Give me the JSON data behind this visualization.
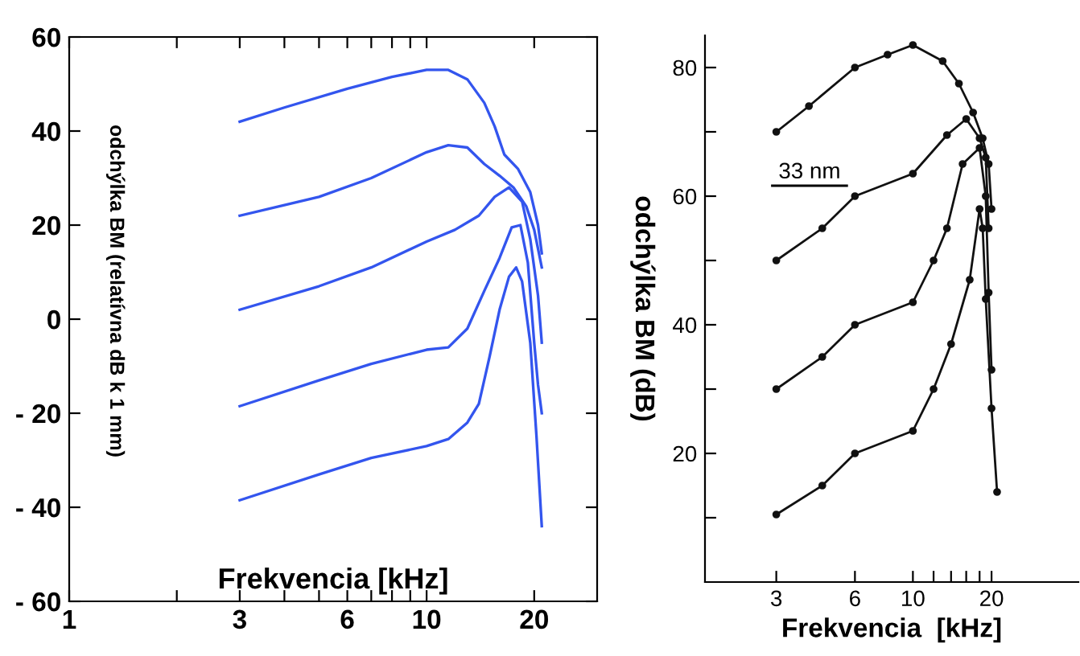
{
  "chart_data": [
    {
      "type": "line",
      "xlabel": "Frekvencia [kHz]",
      "ylabel": "odchýlka BM (relatívna dB k 1 mm)",
      "log": "x",
      "xlim": [
        1,
        30
      ],
      "xticks": [
        1,
        {
          "value": 2,
          "label": null
        },
        3,
        {
          "value": 4,
          "label": null
        },
        {
          "value": 5,
          "label": null
        },
        6,
        {
          "value": 7,
          "label": null
        },
        {
          "value": 8,
          "label": null
        },
        {
          "value": 9,
          "label": null
        },
        10,
        20
      ],
      "ylim": [
        -60,
        60
      ],
      "yticks": [
        {
          "value": -60,
          "label": "- 60"
        },
        {
          "value": -40,
          "label": "- 40"
        },
        {
          "value": -20,
          "label": "- 20"
        },
        0,
        20,
        40,
        60
      ],
      "grid": false,
      "marker": "none",
      "line_style": "solid",
      "series": [
        {
          "color": "#3355ee",
          "x": [
            3,
            4,
            6,
            8,
            10,
            11.5,
            13,
            14.5,
            15.5,
            16.5,
            18,
            19.5,
            20.5,
            21
          ],
          "values": [
            42,
            45,
            49,
            51.5,
            53,
            53,
            51,
            46,
            41,
            35,
            32,
            27,
            20,
            14
          ]
        },
        {
          "color": "#3355ee",
          "x": [
            3,
            5,
            7,
            10,
            11.5,
            13,
            14.5,
            16,
            17.5,
            19,
            20,
            21
          ],
          "values": [
            22,
            26,
            30,
            35.5,
            37,
            36.5,
            33,
            30.5,
            28,
            24,
            19,
            11
          ]
        },
        {
          "color": "#3355ee",
          "x": [
            3,
            5,
            7,
            10,
            12,
            14,
            15.5,
            17,
            18.5,
            19.5,
            20.5,
            21
          ],
          "values": [
            2,
            7,
            11,
            16.5,
            19,
            22,
            26,
            28,
            25,
            17,
            5,
            -5
          ]
        },
        {
          "color": "#3355ee",
          "x": [
            3,
            5,
            7,
            10,
            11.5,
            13,
            14.5,
            16,
            17.3,
            18.3,
            19.2,
            20,
            20.5,
            21
          ],
          "values": [
            -18.5,
            -13,
            -9.5,
            -6.5,
            -6,
            -2,
            6,
            13,
            19.5,
            20,
            12,
            -5,
            -14,
            -20
          ]
        },
        {
          "color": "#3355ee",
          "x": [
            3,
            5,
            7,
            10,
            11.5,
            13,
            14,
            15,
            16,
            17,
            17.8,
            18.5,
            19.5,
            20.3,
            21
          ],
          "values": [
            -38.5,
            -33,
            -29.5,
            -27,
            -25.5,
            -22,
            -18,
            -8,
            2,
            9,
            11,
            8,
            -5,
            -25,
            -44
          ]
        }
      ]
    },
    {
      "type": "line",
      "xlabel": "Frekvencia  [kHz]",
      "ylabel": "odchýlka BM (dB)",
      "log": "x",
      "xlim": [
        1.6,
        43
      ],
      "xticks": [
        3,
        6,
        10,
        {
          "value": 12,
          "label": null
        },
        {
          "value": 14,
          "label": null
        },
        {
          "value": 16,
          "label": null
        },
        {
          "value": 18,
          "label": null
        },
        20
      ],
      "ylim": [
        0,
        85
      ],
      "yticks": [
        {
          "value": 10,
          "label": null
        },
        20,
        {
          "value": 30,
          "label": null
        },
        40,
        {
          "value": 50,
          "label": null
        },
        60,
        {
          "value": 70,
          "label": null
        },
        80
      ],
      "grid": false,
      "marker": "circle",
      "line_style": "solid",
      "annotations": [
        "33 nm"
      ],
      "series": [
        {
          "color": "#111111",
          "x": [
            3,
            4,
            6,
            8,
            10,
            13,
            15,
            17,
            18.5,
            19.5,
            20
          ],
          "values": [
            70,
            74,
            80,
            82,
            83.5,
            81,
            77.5,
            73,
            69,
            65,
            58
          ]
        },
        {
          "color": "#111111",
          "x": [
            3,
            4.5,
            6,
            10,
            13.5,
            16,
            18,
            19,
            19.5
          ],
          "values": [
            50,
            55,
            60,
            63.5,
            69.5,
            72,
            69,
            66,
            55
          ]
        },
        {
          "color": "#111111",
          "x": [
            3,
            4.5,
            6,
            10,
            12,
            13.5,
            15.5,
            18,
            19,
            19.5,
            20
          ],
          "values": [
            30,
            35,
            40,
            43.5,
            50,
            55,
            65,
            67.5,
            60,
            45,
            33
          ]
        },
        {
          "color": "#111111",
          "x": [
            3,
            4.5,
            6,
            10,
            12,
            14,
            16.5,
            18,
            18.5,
            19,
            20,
            21
          ],
          "values": [
            10.5,
            15,
            20,
            23.5,
            30,
            37,
            47,
            58,
            55,
            44,
            27,
            14
          ]
        }
      ]
    }
  ]
}
